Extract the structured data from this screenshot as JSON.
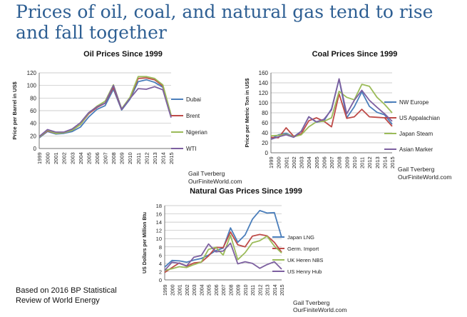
{
  "slide_title": "Prices of oil, coal, and natural gas tend to rise and fall together",
  "source_note_line1": "Based on 2016 BP Statistical",
  "source_note_line2": "Review of World Energy",
  "chart_data": [
    {
      "id": "oil",
      "type": "line",
      "title": "Oil Prices Since 1999",
      "xlabel": "",
      "ylabel": "Price per Barrel in US$",
      "ylim": [
        0,
        120
      ],
      "yticks": [
        0,
        20,
        40,
        60,
        80,
        100,
        120
      ],
      "grid": true,
      "legend_placement": "right",
      "x": [
        "1999",
        "2000",
        "2001",
        "2002",
        "2003",
        "2004",
        "2005",
        "2006",
        "2007",
        "2008",
        "2009",
        "2010",
        "2011",
        "2012",
        "2013",
        "2014",
        "2015"
      ],
      "credit_line1": "Gail Tverberg",
      "credit_line2": "OurFiniteWorld.com",
      "series": [
        {
          "name": "Dubai",
          "color": "#4a7ebb",
          "values": [
            17,
            27,
            23,
            24,
            27,
            34,
            50,
            62,
            68,
            94,
            61,
            78,
            106,
            109,
            105,
            97,
            51
          ]
        },
        {
          "name": "Brent",
          "color": "#be4b48",
          "values": [
            18,
            28,
            24,
            25,
            29,
            38,
            55,
            65,
            72,
            97,
            62,
            80,
            111,
            112,
            109,
            99,
            52
          ]
        },
        {
          "name": "Nigerian",
          "color": "#9bbb59",
          "values": [
            18,
            29,
            24,
            25,
            29,
            38,
            56,
            67,
            75,
            101,
            63,
            81,
            114,
            114,
            111,
            101,
            53
          ]
        },
        {
          "name": "WTI",
          "color": "#7d60a0",
          "values": [
            19,
            30,
            26,
            26,
            31,
            41,
            57,
            66,
            72,
            100,
            62,
            79,
            95,
            94,
            98,
            93,
            49
          ]
        }
      ]
    },
    {
      "id": "coal",
      "type": "line",
      "title": "Coal Prices Since 1999",
      "xlabel": "",
      "ylabel": "Price per Metric Ton in US$",
      "ylim": [
        0,
        160
      ],
      "yticks": [
        0,
        20,
        40,
        60,
        80,
        100,
        120,
        140,
        160
      ],
      "grid": true,
      "legend_placement": "right",
      "x": [
        "1999",
        "2000",
        "2001",
        "2002",
        "2003",
        "2004",
        "2005",
        "2006",
        "2007",
        "2008",
        "2009",
        "2010",
        "2011",
        "2012",
        "2013",
        "2014",
        "2015"
      ],
      "credit_line1": "Gail Tverberg",
      "credit_line2": "OurFiniteWorld.com",
      "series": [
        {
          "name": "NW Europe",
          "color": "#4a7ebb",
          "values": [
            28,
            36,
            39,
            32,
            43,
            72,
            61,
            64,
            88,
            147,
            70,
            92,
            122,
            93,
            81,
            76,
            57
          ]
        },
        {
          "name": "US Appalachian",
          "color": "#be4b48",
          "values": [
            31,
            30,
            50,
            33,
            38,
            64,
            70,
            63,
            52,
            118,
            69,
            72,
            87,
            72,
            71,
            70,
            53
          ]
        },
        {
          "name": "Japan Steam",
          "color": "#9bbb59",
          "values": [
            34,
            35,
            37,
            32,
            36,
            52,
            62,
            63,
            70,
            123,
            111,
            106,
            137,
            133,
            111,
            97,
            80
          ]
        },
        {
          "name": "Asian Marker",
          "color": "#7d60a0",
          "values": [
            27,
            32,
            36,
            31,
            43,
            72,
            62,
            67,
            86,
            148,
            78,
            105,
            125,
            105,
            91,
            78,
            63
          ]
        }
      ]
    },
    {
      "id": "gas",
      "type": "line",
      "title": "Natural Gas Prices Since 1999",
      "xlabel": "",
      "ylabel": "US Dollars per Million Btu",
      "ylim": [
        0,
        18
      ],
      "yticks": [
        0,
        2,
        4,
        6,
        8,
        10,
        12,
        14,
        16,
        18
      ],
      "grid": true,
      "legend_placement": "right",
      "x": [
        "1999",
        "2000",
        "2001",
        "2002",
        "2003",
        "2004",
        "2005",
        "2006",
        "2007",
        "2008",
        "2009",
        "2010",
        "2011",
        "2012",
        "2013",
        "2014",
        "2015"
      ],
      "credit_line1": "Gail Tverberg",
      "credit_line2": "OurFiniteWorld.com",
      "series": [
        {
          "name": "Japan LNG",
          "color": "#4a7ebb",
          "values": [
            3.1,
            4.7,
            4.6,
            4.3,
            4.8,
            5.2,
            6.0,
            7.1,
            7.7,
            12.6,
            9.1,
            10.9,
            14.7,
            16.8,
            16.2,
            16.3,
            10.3
          ]
        },
        {
          "name": "Germ. Import",
          "color": "#be4b48",
          "values": [
            1.8,
            3.0,
            4.1,
            3.3,
            4.1,
            4.3,
            5.8,
            7.9,
            7.8,
            11.6,
            8.5,
            8.0,
            10.6,
            11.0,
            10.7,
            9.1,
            6.7
          ]
        },
        {
          "name": "UK Heren NBS",
          "color": "#9bbb59",
          "values": [
            2.3,
            2.7,
            3.2,
            3.0,
            3.7,
            4.3,
            7.4,
            7.9,
            6.0,
            10.8,
            4.9,
            6.6,
            9.0,
            9.5,
            10.6,
            8.2,
            6.5
          ]
        },
        {
          "name": "US Henry Hub",
          "color": "#7d60a0",
          "values": [
            2.3,
            4.3,
            4.0,
            3.4,
            5.5,
            5.9,
            8.7,
            6.8,
            7.0,
            8.9,
            3.9,
            4.4,
            4.0,
            2.8,
            3.7,
            4.4,
            2.6
          ]
        }
      ]
    }
  ]
}
